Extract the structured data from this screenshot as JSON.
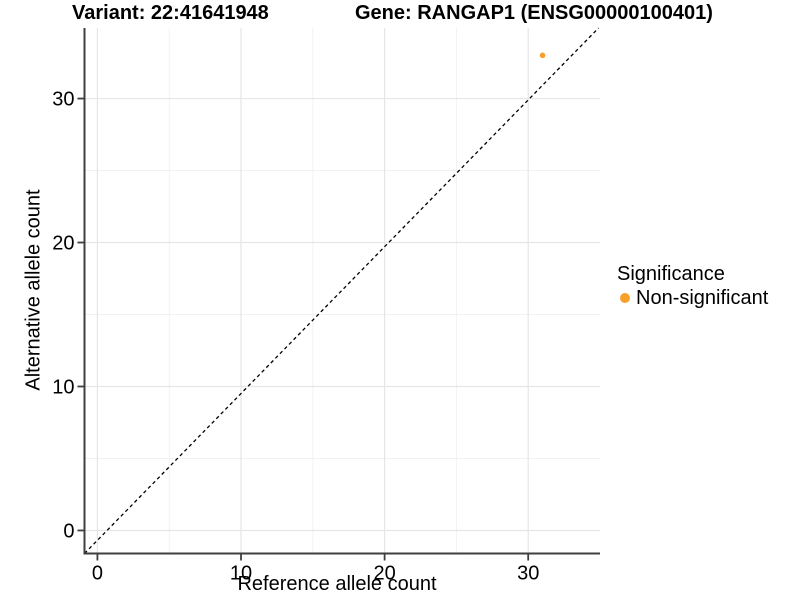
{
  "chart_data": {
    "type": "scatter",
    "title_left": "Variant: 22:41641948",
    "title_right": "Gene: RANGAP1 (ENSG00000100401)",
    "xlabel": "Reference allele count",
    "ylabel": "Alternative allele count",
    "xlim": [
      -0.9,
      35.0
    ],
    "ylim": [
      -1.6,
      34.9
    ],
    "x_ticks": [
      0,
      10,
      20,
      30
    ],
    "y_ticks": [
      0,
      10,
      20,
      30
    ],
    "x_minor_ticks": [
      5,
      15,
      25
    ],
    "y_minor_ticks": [
      5,
      15,
      25
    ],
    "grid": true,
    "identity_line": {
      "style": "dashed",
      "color": "#000000",
      "slope": 1,
      "intercept": 0
    },
    "series": [
      {
        "name": "Non-significant",
        "color": "#F9A02B",
        "points": [
          {
            "x": 31,
            "y": 33
          }
        ]
      }
    ],
    "legend": {
      "title": "Significance",
      "position": "right",
      "items": [
        {
          "label": "Non-significant",
          "color": "#F9A02B"
        }
      ]
    }
  },
  "colors": {
    "background": "#FFFFFF",
    "grid_major": "#E6E6E6",
    "grid_minor": "#F2F2F2",
    "axis_line": "#3F3F3F",
    "text": "#000000",
    "point_orange": "#F9A02B"
  }
}
